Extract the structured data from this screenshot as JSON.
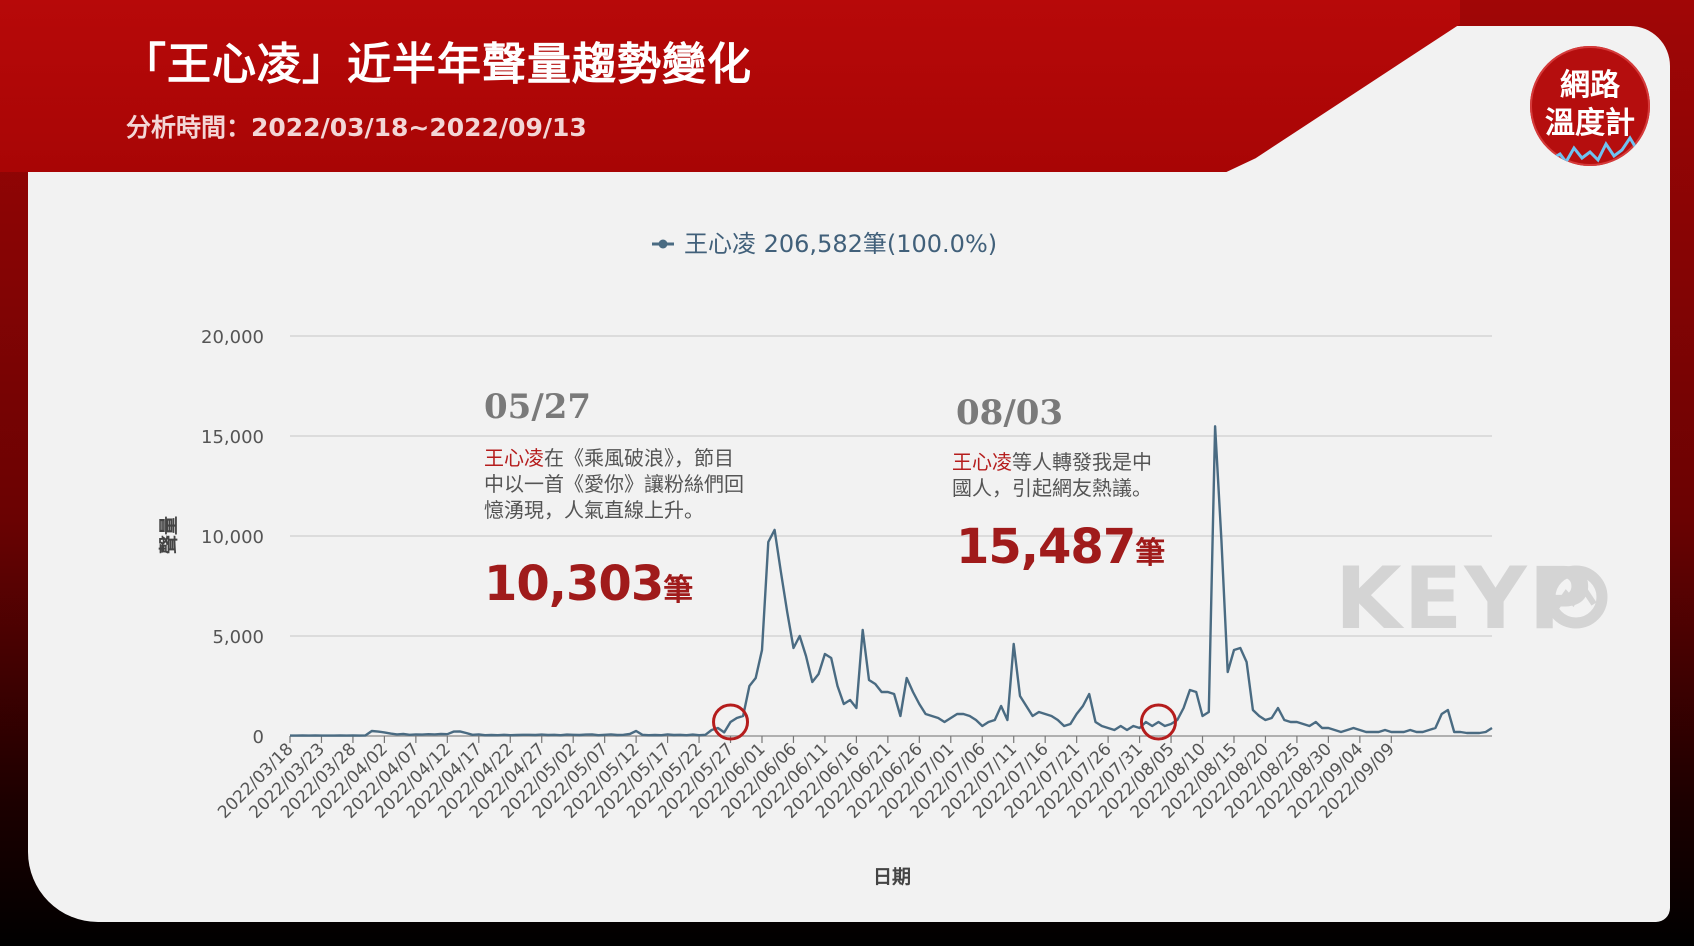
{
  "header": {
    "title": "「王心凌」近半年聲量趨勢變化",
    "subtitle": "分析時間：2022/03/18~2022/09/13"
  },
  "logo": {
    "line1": "網路",
    "line2": "溫度計"
  },
  "watermark": "KEYP",
  "colors": {
    "line": "#4a6b82",
    "accent": "#b51d1d",
    "banner": "#b70909"
  },
  "annotations": [
    {
      "date": "05/27",
      "lines": [
        [
          {
            "text": "王心凌",
            "red": true
          },
          {
            "text": "在《乘風破浪》，節目",
            "red": false
          }
        ],
        [
          {
            "text": "中以一首《愛你》讓粉絲們回",
            "red": false
          }
        ],
        [
          {
            "text": "憶湧現，人氣直線上升。",
            "red": false
          }
        ]
      ],
      "value": "10,303",
      "unit": "筆"
    },
    {
      "date": "08/03",
      "lines": [
        [
          {
            "text": "王心凌",
            "red": true
          },
          {
            "text": "等人轉發我是中",
            "red": false
          }
        ],
        [
          {
            "text": "國人，引起網友熱議。",
            "red": false
          }
        ]
      ],
      "value": "15,487",
      "unit": "筆"
    }
  ],
  "chart_data": {
    "type": "line",
    "legend": "王心凌 206,582筆(100.0%)",
    "xlabel": "日期",
    "ylabel": "聲量",
    "ylim": [
      0,
      20000
    ],
    "yticks": [
      0,
      5000,
      10000,
      15000,
      20000
    ],
    "ytick_labels": [
      "0",
      "5,000",
      "10,000",
      "15,000",
      "20,000"
    ],
    "grid": true,
    "x_start": "2022/03/18",
    "x_end": "2022/09/13",
    "xtick_labels": [
      "2022/03/18",
      "2022/03/23",
      "2022/03/28",
      "2022/04/02",
      "2022/04/07",
      "2022/04/12",
      "2022/04/17",
      "2022/04/22",
      "2022/04/27",
      "2022/05/02",
      "2022/05/07",
      "2022/05/12",
      "2022/05/17",
      "2022/05/22",
      "2022/05/27",
      "2022/06/01",
      "2022/06/06",
      "2022/06/11",
      "2022/06/16",
      "2022/06/21",
      "2022/06/26",
      "2022/07/01",
      "2022/07/06",
      "2022/07/11",
      "2022/07/16",
      "2022/07/21",
      "2022/07/26",
      "2022/07/31",
      "2022/08/05",
      "2022/08/10",
      "2022/08/15",
      "2022/08/20",
      "2022/08/25",
      "2022/08/30",
      "2022/09/04",
      "2022/09/09"
    ],
    "highlights": [
      "2022/05/27",
      "2022/08/03"
    ],
    "series": [
      {
        "name": "王心凌",
        "values": [
          20,
          20,
          30,
          20,
          30,
          20,
          20,
          20,
          30,
          20,
          30,
          20,
          30,
          250,
          220,
          180,
          120,
          80,
          100,
          60,
          80,
          70,
          90,
          80,
          100,
          90,
          220,
          230,
          150,
          60,
          80,
          40,
          50,
          40,
          60,
          40,
          50,
          60,
          60,
          50,
          70,
          50,
          60,
          40,
          70,
          60,
          50,
          70,
          80,
          40,
          60,
          80,
          50,
          60,
          100,
          250,
          60,
          40,
          50,
          40,
          80,
          50,
          60,
          40,
          70,
          40,
          60,
          300,
          400,
          180,
          700,
          900,
          1000,
          2500,
          2900,
          4300,
          9700,
          10303,
          8200,
          6200,
          4400,
          5000,
          4000,
          2700,
          3100,
          4100,
          3900,
          2500,
          1600,
          1800,
          1400,
          5300,
          2800,
          2600,
          2200,
          2200,
          2100,
          1000,
          2900,
          2200,
          1600,
          1100,
          1000,
          900,
          700,
          900,
          1100,
          1100,
          1000,
          800,
          500,
          700,
          800,
          1500,
          800,
          4600,
          2000,
          1500,
          1000,
          1200,
          1100,
          1000,
          800,
          500,
          600,
          1100,
          1500,
          2100,
          700,
          500,
          400,
          300,
          500,
          300,
          500,
          400,
          700,
          500,
          700,
          500,
          600,
          800,
          1400,
          2300,
          2200,
          1000,
          1200,
          15487,
          9800,
          3200,
          4300,
          4400,
          3700,
          1300,
          1000,
          800,
          900,
          1400,
          800,
          700,
          700,
          600,
          500,
          700,
          400,
          400,
          300,
          200,
          300,
          400,
          300,
          200,
          200,
          200,
          300,
          200,
          200,
          200,
          300,
          200,
          200,
          300,
          400,
          1100,
          1300,
          200,
          200,
          150,
          150,
          150,
          200,
          400
        ]
      }
    ]
  }
}
